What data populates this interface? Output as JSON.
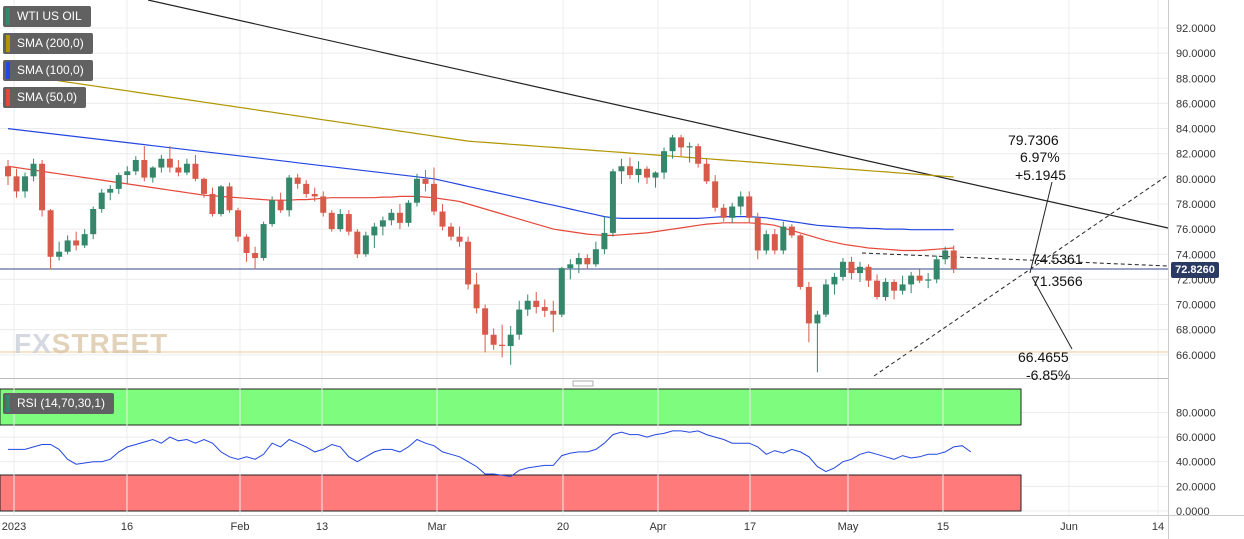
{
  "instrument": "WTI US OIL",
  "indicators": {
    "sma200": {
      "label": "SMA (200,0)",
      "color": "#b09500"
    },
    "sma100": {
      "label": "SMA (100,0)",
      "color": "#2347e0"
    },
    "sma50": {
      "label": "SMA (50,0)",
      "color": "#e5483a"
    },
    "rsi": {
      "label": "RSI (14,70,30,1)",
      "color": "#2347e0"
    }
  },
  "watermark": {
    "left": "FX",
    "right": "STREET"
  },
  "last_price": "72.8260",
  "colors": {
    "up": "#34876a",
    "down": "#d85a4a",
    "overbought": "#7efc7e",
    "oversold": "#ff7a7a",
    "price_line": "#3a4a8a"
  },
  "annotations": {
    "upper_target": "79.7306",
    "upper_pct": "6.97%",
    "upper_diff": "+5.1945",
    "resistance": "74.5361",
    "support": "71.3566",
    "lower_target": "66.4655",
    "lower_pct": "-6.85%"
  },
  "chart_data": {
    "type": "candlestick",
    "title": "WTI US OIL",
    "price_axis": {
      "ticks": [
        "92.0000",
        "90.0000",
        "88.0000",
        "86.0000",
        "84.0000",
        "82.0000",
        "80.0000",
        "78.0000",
        "76.0000",
        "74.0000",
        "72.0000",
        "70.0000",
        "68.0000",
        "66.0000"
      ]
    },
    "rsi_axis": {
      "ticks": [
        "80.0000",
        "60.0000",
        "40.0000",
        "20.0000",
        "0.0000"
      ]
    },
    "time_axis": {
      "ticks": [
        "2023",
        "16",
        "Feb",
        "13",
        "Mar",
        "20",
        "Apr",
        "17",
        "May",
        "15",
        "Jun",
        "14"
      ]
    },
    "last_price": 72.826,
    "candles_ohlc": [
      [
        81.0,
        81.5,
        79.5,
        80.2
      ],
      [
        80.2,
        80.8,
        78.5,
        79.0
      ],
      [
        79.0,
        80.5,
        78.5,
        80.2
      ],
      [
        80.2,
        81.6,
        79.8,
        81.2
      ],
      [
        81.2,
        81.5,
        77.0,
        77.5
      ],
      [
        77.5,
        77.6,
        72.8,
        73.8
      ],
      [
        73.8,
        75.0,
        73.5,
        74.2
      ],
      [
        74.2,
        75.5,
        74.0,
        75.1
      ],
      [
        75.1,
        75.8,
        74.3,
        74.7
      ],
      [
        74.7,
        76.0,
        74.5,
        75.6
      ],
      [
        75.6,
        77.8,
        75.2,
        77.6
      ],
      [
        77.6,
        79.2,
        77.3,
        78.9
      ],
      [
        78.9,
        79.5,
        78.3,
        79.2
      ],
      [
        79.2,
        80.5,
        78.8,
        80.3
      ],
      [
        80.3,
        81.0,
        79.6,
        80.6
      ],
      [
        80.6,
        81.8,
        80.3,
        81.5
      ],
      [
        81.5,
        82.6,
        79.8,
        80.1
      ],
      [
        80.1,
        81.0,
        79.7,
        80.9
      ],
      [
        80.9,
        81.9,
        80.5,
        81.6
      ],
      [
        81.6,
        82.6,
        80.5,
        80.9
      ],
      [
        80.9,
        81.5,
        80.2,
        80.5
      ],
      [
        80.5,
        81.6,
        80.3,
        81.2
      ],
      [
        81.2,
        81.9,
        79.8,
        80.0
      ],
      [
        80.0,
        80.1,
        78.5,
        78.8
      ],
      [
        78.8,
        79.3,
        77.0,
        77.2
      ],
      [
        77.2,
        79.5,
        77.0,
        79.4
      ],
      [
        79.4,
        79.7,
        77.3,
        77.5
      ],
      [
        77.5,
        77.7,
        75.0,
        75.4
      ],
      [
        75.4,
        75.6,
        73.4,
        74.1
      ],
      [
        74.1,
        74.6,
        72.8,
        73.7
      ],
      [
        73.7,
        76.6,
        73.5,
        76.4
      ],
      [
        76.4,
        78.6,
        76.2,
        78.3
      ],
      [
        78.3,
        78.9,
        77.3,
        77.5
      ],
      [
        77.5,
        80.3,
        77.0,
        80.1
      ],
      [
        80.1,
        80.4,
        79.2,
        79.6
      ],
      [
        79.6,
        79.9,
        78.5,
        78.8
      ],
      [
        78.8,
        79.3,
        78.2,
        78.6
      ],
      [
        78.6,
        79.0,
        77.0,
        77.3
      ],
      [
        77.3,
        77.5,
        75.8,
        76.0
      ],
      [
        76.0,
        77.6,
        75.8,
        77.2
      ],
      [
        77.2,
        77.5,
        75.5,
        75.8
      ],
      [
        75.8,
        76.0,
        73.7,
        74.0
      ],
      [
        74.0,
        75.8,
        73.8,
        75.5
      ],
      [
        75.5,
        76.5,
        74.5,
        76.2
      ],
      [
        76.2,
        77.0,
        75.5,
        76.7
      ],
      [
        76.7,
        77.6,
        76.3,
        77.3
      ],
      [
        77.3,
        78.0,
        76.0,
        76.5
      ],
      [
        76.5,
        78.3,
        76.2,
        78.1
      ],
      [
        78.1,
        80.4,
        77.8,
        80.0
      ],
      [
        80.0,
        80.7,
        79.0,
        79.6
      ],
      [
        79.6,
        80.9,
        77.1,
        77.4
      ],
      [
        77.4,
        78.0,
        75.9,
        76.2
      ],
      [
        76.2,
        76.5,
        75.1,
        75.4
      ],
      [
        75.4,
        76.2,
        74.6,
        75.0
      ],
      [
        75.0,
        75.4,
        71.2,
        71.6
      ],
      [
        71.6,
        72.5,
        69.3,
        69.7
      ],
      [
        69.7,
        70.0,
        66.2,
        67.6
      ],
      [
        67.6,
        68.1,
        66.4,
        66.8
      ],
      [
        66.8,
        68.4,
        65.8,
        66.7
      ],
      [
        66.7,
        68.3,
        65.2,
        67.6
      ],
      [
        67.6,
        70.3,
        67.2,
        69.6
      ],
      [
        69.6,
        70.8,
        69.1,
        70.3
      ],
      [
        70.3,
        71.0,
        69.3,
        69.8
      ],
      [
        69.8,
        70.4,
        69.0,
        69.5
      ],
      [
        69.5,
        70.3,
        67.8,
        69.2
      ],
      [
        69.2,
        73.0,
        69.0,
        72.9
      ],
      [
        72.9,
        73.6,
        72.0,
        73.2
      ],
      [
        73.2,
        74.1,
        72.5,
        73.7
      ],
      [
        73.7,
        74.0,
        72.8,
        73.2
      ],
      [
        73.2,
        75.0,
        73.0,
        74.4
      ],
      [
        74.4,
        77.0,
        74.0,
        75.7
      ],
      [
        75.7,
        80.8,
        75.4,
        80.6
      ],
      [
        80.6,
        81.6,
        79.6,
        81.0
      ],
      [
        81.0,
        81.7,
        80.0,
        80.3
      ],
      [
        80.3,
        81.4,
        79.7,
        80.8
      ],
      [
        80.8,
        81.0,
        79.6,
        80.1
      ],
      [
        80.1,
        80.6,
        79.3,
        80.5
      ],
      [
        80.5,
        82.5,
        80.0,
        82.2
      ],
      [
        82.2,
        83.5,
        81.6,
        83.3
      ],
      [
        83.3,
        83.5,
        81.8,
        82.5
      ],
      [
        82.5,
        82.9,
        81.3,
        82.6
      ],
      [
        82.6,
        82.8,
        80.9,
        81.2
      ],
      [
        81.2,
        81.6,
        79.6,
        79.8
      ],
      [
        79.8,
        80.3,
        77.4,
        77.7
      ],
      [
        77.7,
        78.0,
        76.6,
        76.9
      ],
      [
        76.9,
        78.1,
        76.5,
        77.8
      ],
      [
        77.8,
        79.0,
        77.1,
        78.6
      ],
      [
        78.6,
        79.0,
        76.5,
        76.9
      ],
      [
        76.9,
        77.3,
        73.6,
        74.3
      ],
      [
        74.3,
        75.9,
        74.0,
        75.6
      ],
      [
        75.6,
        76.0,
        74.0,
        74.3
      ],
      [
        74.3,
        76.6,
        74.0,
        76.2
      ],
      [
        76.2,
        76.4,
        75.3,
        75.5
      ],
      [
        75.5,
        75.6,
        71.2,
        71.4
      ],
      [
        71.4,
        71.8,
        67.0,
        68.5
      ],
      [
        68.5,
        69.5,
        64.6,
        69.2
      ],
      [
        69.2,
        72.0,
        69.0,
        71.6
      ],
      [
        71.6,
        72.5,
        70.8,
        72.2
      ],
      [
        72.2,
        73.7,
        71.9,
        73.4
      ],
      [
        73.4,
        73.8,
        72.0,
        72.5
      ],
      [
        72.5,
        73.4,
        71.8,
        73.0
      ],
      [
        73.0,
        73.2,
        71.4,
        71.9
      ],
      [
        71.9,
        72.4,
        70.4,
        70.6
      ],
      [
        70.6,
        72.1,
        70.3,
        71.8
      ],
      [
        71.8,
        72.0,
        70.4,
        71.1
      ],
      [
        71.1,
        72.3,
        70.8,
        71.6
      ],
      [
        71.6,
        72.6,
        70.9,
        72.3
      ],
      [
        72.3,
        72.8,
        71.7,
        71.9
      ],
      [
        71.9,
        72.5,
        71.3,
        72.0
      ],
      [
        72.0,
        73.9,
        71.7,
        73.6
      ],
      [
        73.6,
        74.6,
        73.2,
        74.3
      ],
      [
        74.3,
        74.7,
        72.5,
        72.83
      ]
    ],
    "sma200": [
      88.4,
      88.3,
      88.2,
      88.1,
      88.0,
      87.9,
      87.8,
      87.7,
      87.6,
      87.5,
      87.4,
      87.3,
      87.2,
      87.1,
      87.0,
      86.9,
      86.8,
      86.7,
      86.6,
      86.5,
      86.4,
      86.3,
      86.2,
      86.1,
      86.0,
      85.9,
      85.8,
      85.7,
      85.6,
      85.5,
      85.4,
      85.3,
      85.2,
      85.1,
      85.0,
      84.9,
      84.8,
      84.7,
      84.6,
      84.5,
      84.4,
      84.3,
      84.2,
      84.1,
      84.0,
      83.9,
      83.8,
      83.7,
      83.6,
      83.5,
      83.4,
      83.3,
      83.2,
      83.1,
      83.0,
      82.95,
      82.9,
      82.85,
      82.8,
      82.75,
      82.7,
      82.65,
      82.6,
      82.55,
      82.5,
      82.45,
      82.4,
      82.35,
      82.3,
      82.25,
      82.2,
      82.15,
      82.1,
      82.05,
      82.0,
      81.95,
      81.9,
      81.85,
      81.8,
      81.75,
      81.7,
      81.65,
      81.6,
      81.55,
      81.5,
      81.45,
      81.4,
      81.35,
      81.3,
      81.25,
      81.2,
      81.15,
      81.1,
      81.05,
      81.0,
      80.95,
      80.9,
      80.85,
      80.8,
      80.75,
      80.7,
      80.65,
      80.6,
      80.55,
      80.5,
      80.45,
      80.4,
      80.35,
      80.3,
      80.25,
      80.2,
      80.15
    ],
    "sma100": [
      84.0,
      83.92,
      83.84,
      83.76,
      83.68,
      83.6,
      83.52,
      83.44,
      83.36,
      83.28,
      83.2,
      83.12,
      83.04,
      82.96,
      82.88,
      82.8,
      82.72,
      82.64,
      82.56,
      82.48,
      82.4,
      82.32,
      82.24,
      82.16,
      82.08,
      82.0,
      81.92,
      81.84,
      81.76,
      81.68,
      81.6,
      81.52,
      81.44,
      81.36,
      81.28,
      81.2,
      81.12,
      81.04,
      80.96,
      80.88,
      80.8,
      80.72,
      80.64,
      80.56,
      80.48,
      80.4,
      80.32,
      80.24,
      80.16,
      80.08,
      80.0,
      79.85,
      79.7,
      79.55,
      79.4,
      79.25,
      79.1,
      78.95,
      78.8,
      78.65,
      78.5,
      78.35,
      78.2,
      78.05,
      77.9,
      77.75,
      77.6,
      77.45,
      77.3,
      77.15,
      77.0,
      76.9,
      76.85,
      76.85,
      76.85,
      76.85,
      76.85,
      76.85,
      76.85,
      76.85,
      76.85,
      76.85,
      76.9,
      76.95,
      77.0,
      77.0,
      77.0,
      77.0,
      76.95,
      76.9,
      76.8,
      76.7,
      76.6,
      76.5,
      76.4,
      76.3,
      76.25,
      76.2,
      76.15,
      76.1,
      76.1,
      76.05,
      76.05,
      76.0,
      76.0,
      76.0,
      75.95,
      75.95,
      75.95,
      75.95,
      75.95,
      75.95
    ],
    "sma50": [
      81.0,
      80.9,
      80.8,
      80.7,
      80.6,
      80.5,
      80.4,
      80.3,
      80.2,
      80.1,
      80.0,
      79.9,
      79.8,
      79.7,
      79.6,
      79.5,
      79.4,
      79.3,
      79.2,
      79.1,
      79.0,
      78.9,
      78.8,
      78.7,
      78.65,
      78.6,
      78.55,
      78.5,
      78.45,
      78.4,
      78.35,
      78.3,
      78.3,
      78.3,
      78.35,
      78.35,
      78.4,
      78.45,
      78.5,
      78.5,
      78.5,
      78.5,
      78.5,
      78.5,
      78.55,
      78.55,
      78.6,
      78.6,
      78.6,
      78.55,
      78.5,
      78.4,
      78.3,
      78.2,
      78.0,
      77.8,
      77.6,
      77.4,
      77.2,
      77.0,
      76.8,
      76.6,
      76.4,
      76.2,
      76.0,
      75.9,
      75.8,
      75.7,
      75.6,
      75.55,
      75.5,
      75.5,
      75.55,
      75.6,
      75.65,
      75.7,
      75.8,
      75.9,
      76.0,
      76.1,
      76.2,
      76.3,
      76.4,
      76.45,
      76.5,
      76.5,
      76.5,
      76.5,
      76.45,
      76.4,
      76.3,
      76.1,
      75.9,
      75.7,
      75.5,
      75.3,
      75.1,
      74.95,
      74.8,
      74.7,
      74.6,
      74.5,
      74.45,
      74.4,
      74.35,
      74.3,
      74.3,
      74.3,
      74.35,
      74.4,
      74.45,
      74.5
    ],
    "rsi": [
      50,
      50,
      50,
      52,
      54,
      54,
      50,
      42,
      38,
      39,
      40,
      40,
      42,
      48,
      52,
      54,
      56,
      58,
      55,
      60,
      57,
      58,
      55,
      58,
      55,
      48,
      44,
      42,
      44,
      42,
      46,
      55,
      52,
      58,
      55,
      52,
      48,
      50,
      54,
      52,
      44,
      40,
      44,
      48,
      50,
      50,
      48,
      52,
      58,
      55,
      53,
      48,
      46,
      44,
      40,
      36,
      30,
      30,
      29,
      28,
      33,
      35,
      36,
      37,
      37,
      45,
      47,
      48,
      48,
      50,
      55,
      62,
      64,
      62,
      62,
      60,
      62,
      63,
      65,
      65,
      64,
      65,
      62,
      60,
      58,
      55,
      55,
      55,
      52,
      46,
      49,
      47,
      50,
      48,
      44,
      36,
      32,
      35,
      40,
      42,
      46,
      48,
      46,
      44,
      42,
      45,
      43,
      44,
      46,
      46,
      48,
      52,
      53,
      48
    ]
  }
}
